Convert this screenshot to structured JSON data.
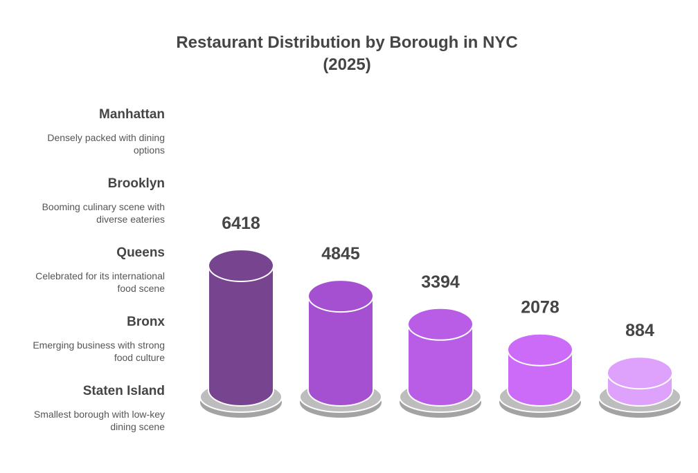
{
  "chart_data": {
    "type": "bar",
    "title": "Restaurant Distribution by Borough in NYC (2025)",
    "title_lines": [
      "Restaurant Distribution by Borough in NYC",
      "(2025)"
    ],
    "categories": [
      "Manhattan",
      "Brooklyn",
      "Queens",
      "Bronx",
      "Staten Island"
    ],
    "descriptions": [
      "Densely packed with dining options",
      "Booming culinary scene with diverse eateries",
      "Celebrated for its international food scene",
      "Emerging business with strong food culture",
      "Smallest borough with low-key dining scene"
    ],
    "description_lines": [
      [
        "Densely packed with dining",
        "options"
      ],
      [
        "Booming culinary scene with",
        "diverse eateries"
      ],
      [
        "Celebrated for its international",
        "food scene"
      ],
      [
        "Emerging business with strong",
        "food culture"
      ],
      [
        "Smallest borough with low-key",
        "dining scene"
      ]
    ],
    "values": [
      6418,
      4845,
      3394,
      2078,
      884
    ],
    "colors": [
      "#774590",
      "#a550d0",
      "#b95de6",
      "#cb6bf8",
      "#dfa2fc"
    ],
    "xlabel": "",
    "ylabel": "",
    "grid": false,
    "legend": "left"
  }
}
